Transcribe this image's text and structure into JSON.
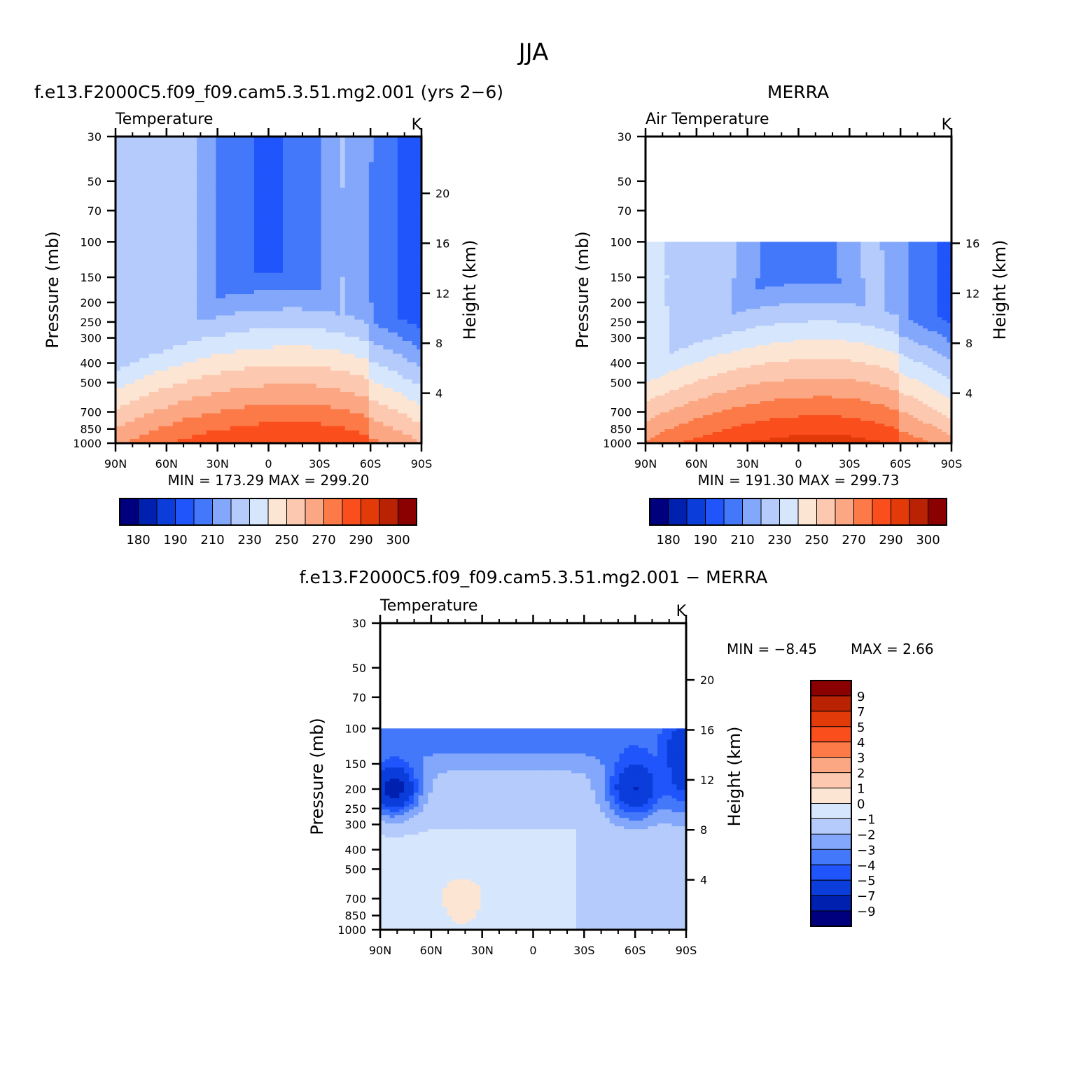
{
  "figure_title": "JJA",
  "chart_data": [
    {
      "type": "heatmap",
      "id": "model",
      "title": "f.e13.F2000C5.f09_f09.cam5.3.51.mg2.001 (yrs 2−6)",
      "subtitle_left": "Temperature",
      "subtitle_right": "K",
      "ylabel": "Pressure (mb)",
      "ylabel_right": "Height (km)",
      "x_ticks": [
        "90N",
        "60N",
        "30N",
        "0",
        "30S",
        "60S",
        "90S"
      ],
      "y_ticks": [
        "30",
        "50",
        "70",
        "100",
        "150",
        "200",
        "250",
        "300",
        "400",
        "500",
        "700",
        "850",
        "1000"
      ],
      "y_ticks_right": [
        "20",
        "16",
        "12",
        "8",
        "4"
      ],
      "stats": {
        "min_label": "MIN =",
        "min": "173.29",
        "max_label": "MAX =",
        "max": "299.20"
      },
      "colorbar": {
        "orientation": "horizontal",
        "labels": [
          "180",
          "190",
          "210",
          "230",
          "250",
          "270",
          "290",
          "300"
        ]
      }
    },
    {
      "type": "heatmap",
      "id": "obs",
      "title": "MERRA",
      "subtitle_left": "Air Temperature",
      "subtitle_right": "K",
      "ylabel": "Pressure (mb)",
      "ylabel_right": "Height (km)",
      "x_ticks": [
        "90N",
        "60N",
        "30N",
        "0",
        "30S",
        "60S",
        "90S"
      ],
      "y_ticks": [
        "30",
        "50",
        "70",
        "100",
        "150",
        "200",
        "250",
        "300",
        "400",
        "500",
        "700",
        "850",
        "1000"
      ],
      "y_ticks_right": [
        "16",
        "12",
        "8",
        "4"
      ],
      "stats": {
        "min_label": "MIN =",
        "min": "191.30",
        "max_label": "MAX =",
        "max": "299.73"
      },
      "colorbar": {
        "orientation": "horizontal",
        "labels": [
          "180",
          "190",
          "210",
          "230",
          "250",
          "270",
          "290",
          "300"
        ]
      }
    },
    {
      "type": "heatmap",
      "id": "diff",
      "title": "f.e13.F2000C5.f09_f09.cam5.3.51.mg2.001 − MERRA",
      "subtitle_left": "Temperature",
      "subtitle_right": "K",
      "ylabel": "Pressure (mb)",
      "ylabel_right": "Height (km)",
      "x_ticks": [
        "90N",
        "60N",
        "30N",
        "0",
        "30S",
        "60S",
        "90S"
      ],
      "y_ticks": [
        "30",
        "50",
        "70",
        "100",
        "150",
        "200",
        "250",
        "300",
        "400",
        "500",
        "700",
        "850",
        "1000"
      ],
      "y_ticks_right": [
        "20",
        "16",
        "12",
        "8",
        "4"
      ],
      "stats": {
        "min_label": "MIN =",
        "min": "−8.45",
        "max_label": "MAX =",
        "max": "2.66"
      },
      "colorbar": {
        "orientation": "vertical",
        "labels": [
          "9",
          "7",
          "5",
          "4",
          "3",
          "2",
          "1",
          "0",
          "−1",
          "−2",
          "−3",
          "−4",
          "−5",
          "−7",
          "−9"
        ]
      }
    }
  ],
  "palette": [
    "#00007f",
    "#0020b0",
    "#0b3ddb",
    "#1f55fb",
    "#4478fb",
    "#83a7fa",
    "#b4cbfb",
    "#d6e6fc",
    "#fde5d4",
    "#fdc8b0",
    "#fca783",
    "#fc7a47",
    "#fb4e1d",
    "#e33a09",
    "#b92304",
    "#8b0000"
  ]
}
